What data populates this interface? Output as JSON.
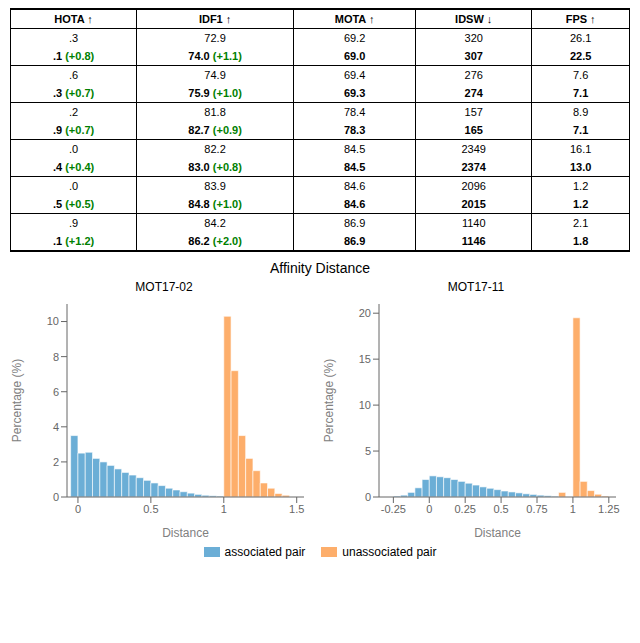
{
  "title": "Affinity Distance",
  "chart_data": [
    {
      "type": "table",
      "columns": [
        "HOTA ↑",
        "IDF1 ↑",
        "MOTA ↑",
        "IDSW ↓",
        "FPS ↑"
      ],
      "rows": [
        [
          ".3",
          "72.9",
          "69.2",
          "320",
          "26.1"
        ],
        [
          ".1 (+0.8)",
          "74.0 (+1.1)",
          "69.0",
          "307",
          "22.5"
        ],
        [
          ".6",
          "74.9",
          "69.4",
          "276",
          "7.6"
        ],
        [
          ".3 (+0.7)",
          "75.9 (+1.0)",
          "69.3",
          "274",
          "7.1"
        ],
        [
          ".2",
          "81.8",
          "78.4",
          "157",
          "8.9"
        ],
        [
          ".9 (+0.7)",
          "82.7 (+0.9)",
          "78.3",
          "165",
          "7.1"
        ],
        [
          ".0",
          "82.2",
          "84.5",
          "2349",
          "16.1"
        ],
        [
          ".4 (+0.4)",
          "83.0 (+0.8)",
          "84.5",
          "2374",
          "13.0"
        ],
        [
          ".0",
          "83.9",
          "84.6",
          "2096",
          "1.2"
        ],
        [
          ".5 (+0.5)",
          "84.8 (+1.0)",
          "84.6",
          "2015",
          "1.2"
        ],
        [
          ".9",
          "84.2",
          "86.9",
          "1140",
          "2.1"
        ],
        [
          ".1 (+1.2)",
          "86.2 (+2.0)",
          "86.9",
          "1146",
          "1.8"
        ]
      ]
    },
    {
      "type": "histogram",
      "title": "MOT17-02",
      "xlabel": "Distance",
      "ylabel": "Percentage (%)",
      "series": [
        {
          "name": "associated pair",
          "color": "#6baed6",
          "bins": [
            -0.05,
            0.0,
            0.05,
            0.1,
            0.15,
            0.2,
            0.25,
            0.3,
            0.35,
            0.4,
            0.45,
            0.5,
            0.55,
            0.6,
            0.65,
            0.7,
            0.75,
            0.8,
            0.85,
            0.9,
            0.95,
            1.0
          ],
          "values": [
            3.5,
            2.5,
            2.55,
            2.2,
            2.0,
            1.8,
            1.6,
            1.4,
            1.25,
            1.1,
            0.95,
            0.8,
            0.65,
            0.5,
            0.4,
            0.3,
            0.22,
            0.15,
            0.1,
            0.07,
            0.05
          ]
        },
        {
          "name": "unassociated pair",
          "color": "#fdae6b",
          "bins": [
            1.0,
            1.05,
            1.1,
            1.15,
            1.2,
            1.25,
            1.3,
            1.35,
            1.4,
            1.45
          ],
          "values": [
            10.3,
            7.2,
            3.5,
            2.2,
            1.5,
            0.8,
            0.5,
            0.2,
            0.1
          ]
        }
      ],
      "xlim": [
        -0.075,
        1.55
      ],
      "xticks": [
        0,
        0.5,
        1,
        1.5
      ],
      "ylim": [
        0,
        11
      ],
      "yticks": [
        0,
        2,
        4,
        6,
        8,
        10
      ]
    },
    {
      "type": "histogram",
      "title": "MOT17-11",
      "xlabel": "Distance",
      "ylabel": "Percentage (%)",
      "series": [
        {
          "name": "associated pair",
          "color": "#6baed6",
          "bins": [
            -0.25,
            -0.2,
            -0.15,
            -0.1,
            -0.05,
            0.0,
            0.05,
            0.1,
            0.15,
            0.2,
            0.25,
            0.3,
            0.35,
            0.4,
            0.45,
            0.5,
            0.55,
            0.6,
            0.65,
            0.7,
            0.75,
            0.8,
            0.85,
            0.9
          ],
          "values": [
            0.1,
            0.2,
            0.5,
            1.0,
            1.9,
            2.3,
            2.2,
            2.1,
            1.9,
            1.7,
            1.5,
            1.3,
            1.1,
            0.95,
            0.8,
            0.65,
            0.55,
            0.45,
            0.35,
            0.28,
            0.2,
            0.14,
            0.08
          ]
        },
        {
          "name": "unassociated pair",
          "color": "#fdae6b",
          "bins": [
            0.9,
            0.95,
            1.0,
            1.05,
            1.1,
            1.15,
            1.2,
            1.25
          ],
          "values": [
            0.5,
            0.0,
            19.5,
            1.7,
            0.7,
            0.3,
            0.1
          ]
        }
      ],
      "xlim": [
        -0.35,
        1.3
      ],
      "xticks": [
        -0.25,
        0,
        0.25,
        0.5,
        0.75,
        1,
        1.25
      ],
      "ylim": [
        0,
        21
      ],
      "yticks": [
        0,
        5,
        10,
        15,
        20
      ]
    }
  ]
}
